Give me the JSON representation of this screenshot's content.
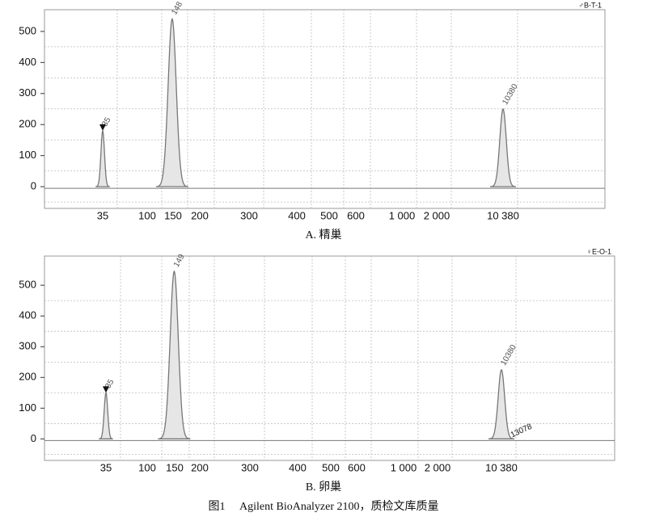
{
  "figure_caption": "图1　 Agilent BioAnalyzer 2100，质检文库质量",
  "chart_data": [
    {
      "type": "electropherogram",
      "title": "A. 精巢",
      "sample_label": "♂B-T-1",
      "x": [
        35,
        148,
        10380
      ],
      "values": [
        180,
        540,
        250
      ],
      "color": "#777777",
      "ylim": [
        -70,
        570
      ],
      "yticks": [
        0,
        100,
        200,
        300,
        400,
        500
      ],
      "xticks": [
        35,
        100,
        150,
        200,
        300,
        400,
        500,
        600,
        {
          "value": 1000,
          "label": "1 000"
        },
        {
          "value": 2000,
          "label": "2 000"
        },
        {
          "value": 10380,
          "label": "10 380"
        }
      ],
      "grid": true
    },
    {
      "type": "electropherogram",
      "title": "B. 卵巢",
      "sample_label": "♀E-O-1",
      "annotation": "13078",
      "x": [
        35,
        149,
        10380
      ],
      "values": [
        150,
        545,
        225
      ],
      "color": "#777777",
      "ylim": [
        -70,
        595
      ],
      "yticks": [
        0,
        100,
        200,
        300,
        400,
        500
      ],
      "xticks": [
        35,
        100,
        150,
        200,
        300,
        400,
        500,
        600,
        {
          "value": 1000,
          "label": "1 000"
        },
        {
          "value": 2000,
          "label": "2 000"
        },
        {
          "value": 10380,
          "label": "10 380"
        }
      ],
      "grid": true
    }
  ]
}
